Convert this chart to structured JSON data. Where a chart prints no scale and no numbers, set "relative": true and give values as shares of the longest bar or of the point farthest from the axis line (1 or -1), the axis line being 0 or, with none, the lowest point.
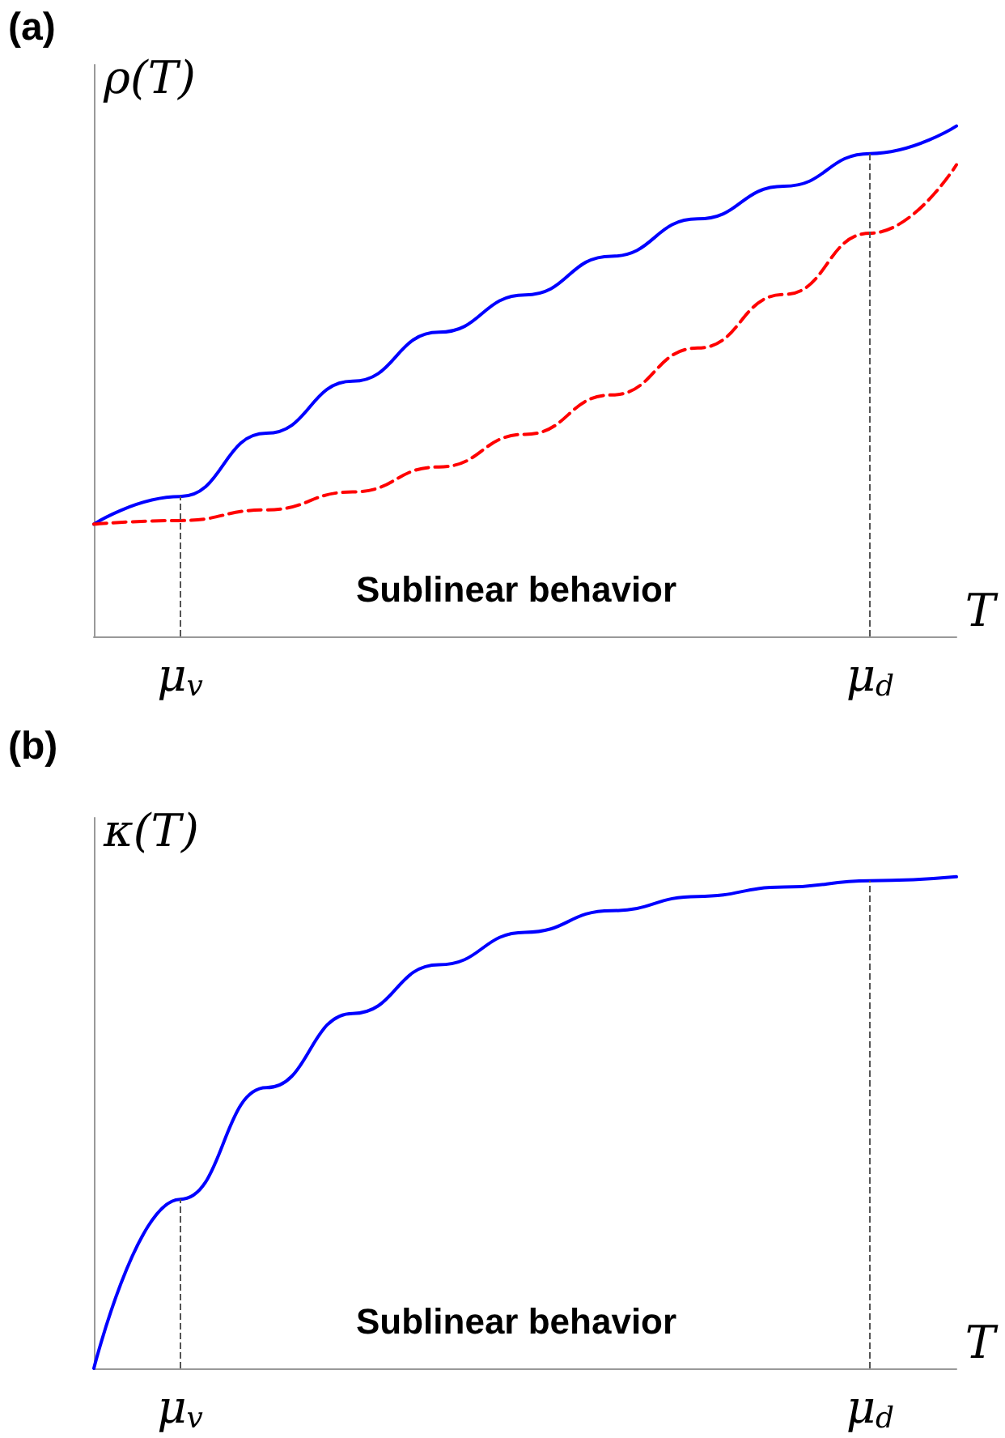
{
  "chart_data": [
    {
      "type": "line",
      "title": "(a)",
      "ylabel": "ρ(T)",
      "xlabel": "T",
      "relative": true,
      "tick_labels": "x",
      "annotations": [
        "Sublinear behavior"
      ],
      "categories": [
        null,
        "μ$_{v}$",
        null,
        null,
        null,
        null,
        null,
        null,
        null,
        "μ$_{d}$",
        null
      ],
      "ref_lines": [
        {
          "axis": "x",
          "value": "μ$_{v}$",
          "color": "#555555",
          "line_style": "dashed"
        },
        {
          "axis": "x",
          "value": "μ$_{d}$",
          "color": "#555555",
          "line_style": "dashed"
        }
      ],
      "series": [
        {
          "color": "#0000ff",
          "line_style": "solid",
          "values": [
            0.22,
            0.274,
            0.398,
            0.5,
            0.596,
            0.669,
            0.745,
            0.818,
            0.882,
            0.946,
            1
          ]
        },
        {
          "color": "#ff0000",
          "line_style": "dashed",
          "values": [
            0.22,
            0.227,
            0.248,
            0.283,
            0.332,
            0.396,
            0.473,
            0.565,
            0.67,
            0.79,
            0.924
          ]
        }
      ]
    },
    {
      "type": "line",
      "title": "(b)",
      "ylabel": "κ(T)",
      "xlabel": "T",
      "relative": true,
      "tick_labels": "x",
      "annotations": [
        "Sublinear behavior"
      ],
      "categories": [
        null,
        "μ$_{v}$",
        null,
        null,
        null,
        null,
        null,
        null,
        null,
        "μ$_{d}$",
        null
      ],
      "ref_lines": [
        {
          "axis": "x",
          "value": "μ$_{v}$",
          "color": "#555555",
          "line_style": "dashed"
        },
        {
          "axis": "x",
          "value": "μ$_{d}$",
          "color": "#555555",
          "line_style": "dashed"
        }
      ],
      "series": [
        {
          "color": "#0000ff",
          "line_style": "solid",
          "values": [
            0,
            0.344,
            0.571,
            0.722,
            0.821,
            0.887,
            0.931,
            0.96,
            0.979,
            0.992,
            1
          ]
        }
      ]
    }
  ]
}
